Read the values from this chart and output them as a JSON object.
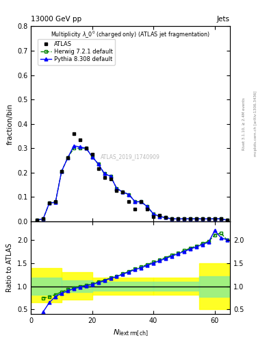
{
  "title_top": "13000 GeV pp",
  "title_right": "Jets",
  "main_title": "Multiplicity $\\lambda$_0$^0$ (charged only) (ATLAS jet fragmentation)",
  "right_label": "Rivet 3.1.10, ≥ 2.4M events",
  "arxiv_label": "mcplots.cern.ch [arXiv:1306.3436]",
  "watermark": "ATLAS_2019_I1740909",
  "ylabel_main": "fraction/bin",
  "ylabel_ratio": "Ratio to ATLAS",
  "ylim_main": [
    0.0,
    0.8
  ],
  "ylim_ratio": [
    0.4,
    2.4
  ],
  "xlim": [
    0,
    65
  ],
  "atlas_x": [
    2,
    4,
    6,
    8,
    10,
    12,
    14,
    16,
    18,
    20,
    22,
    24,
    26,
    28,
    30,
    32,
    34,
    36,
    38,
    40,
    42,
    44,
    46,
    48,
    50,
    52,
    54,
    56,
    58,
    60,
    62,
    64
  ],
  "atlas_y": [
    0.005,
    0.012,
    0.075,
    0.08,
    0.205,
    0.26,
    0.36,
    0.335,
    0.3,
    0.275,
    0.215,
    0.18,
    0.175,
    0.125,
    0.12,
    0.08,
    0.05,
    0.08,
    0.05,
    0.02,
    0.025,
    0.015,
    0.01,
    0.01,
    0.01,
    0.01,
    0.01,
    0.01,
    0.01,
    0.01,
    0.01,
    0.005
  ],
  "herwig_x": [
    2,
    4,
    6,
    8,
    10,
    12,
    14,
    16,
    18,
    20,
    22,
    24,
    26,
    28,
    30,
    32,
    34,
    36,
    38,
    40,
    42,
    44,
    46,
    48,
    50,
    52,
    54,
    56,
    58,
    60,
    62,
    64
  ],
  "herwig_y": [
    0.005,
    0.01,
    0.075,
    0.078,
    0.205,
    0.26,
    0.3,
    0.3,
    0.3,
    0.265,
    0.235,
    0.195,
    0.185,
    0.135,
    0.12,
    0.11,
    0.08,
    0.08,
    0.06,
    0.03,
    0.02,
    0.015,
    0.01,
    0.01,
    0.01,
    0.01,
    0.01,
    0.01,
    0.01,
    0.01,
    0.01,
    0.005
  ],
  "pythia_x": [
    2,
    4,
    6,
    8,
    10,
    12,
    14,
    16,
    18,
    20,
    22,
    24,
    26,
    28,
    30,
    32,
    34,
    36,
    38,
    40,
    42,
    44,
    46,
    48,
    50,
    52,
    54,
    56,
    58,
    60,
    62,
    64
  ],
  "pythia_y": [
    0.005,
    0.01,
    0.075,
    0.078,
    0.205,
    0.26,
    0.31,
    0.305,
    0.3,
    0.265,
    0.235,
    0.195,
    0.185,
    0.135,
    0.12,
    0.11,
    0.08,
    0.08,
    0.06,
    0.03,
    0.02,
    0.015,
    0.01,
    0.01,
    0.01,
    0.01,
    0.01,
    0.01,
    0.01,
    0.01,
    0.01,
    0.005
  ],
  "ratio_herwig_x": [
    4,
    6,
    8,
    10,
    12,
    14,
    16,
    18,
    20,
    22,
    24,
    26,
    28,
    30,
    32,
    34,
    36,
    38,
    40,
    42,
    44,
    46,
    48,
    50,
    52,
    54,
    56,
    58,
    60,
    62,
    64
  ],
  "ratio_herwig_y": [
    0.75,
    0.77,
    0.82,
    0.88,
    0.93,
    0.97,
    1.0,
    1.02,
    1.05,
    1.1,
    1.13,
    1.18,
    1.22,
    1.27,
    1.32,
    1.38,
    1.42,
    1.47,
    1.52,
    1.57,
    1.62,
    1.67,
    1.72,
    1.77,
    1.82,
    1.87,
    1.92,
    1.97,
    2.1,
    2.15,
    2.0
  ],
  "ratio_pythia_x": [
    4,
    6,
    8,
    10,
    12,
    14,
    16,
    18,
    20,
    22,
    24,
    26,
    28,
    30,
    32,
    34,
    36,
    38,
    40,
    42,
    44,
    46,
    48,
    50,
    52,
    54,
    56,
    58,
    60,
    62,
    64
  ],
  "ratio_pythia_y": [
    0.45,
    0.65,
    0.78,
    0.85,
    0.9,
    0.95,
    0.98,
    1.01,
    1.04,
    1.08,
    1.12,
    1.17,
    1.21,
    1.26,
    1.31,
    1.36,
    1.4,
    1.45,
    1.5,
    1.55,
    1.6,
    1.65,
    1.7,
    1.75,
    1.8,
    1.85,
    1.9,
    1.95,
    2.2,
    2.05,
    2.0
  ],
  "band_step_edges": [
    0,
    10,
    20,
    40,
    55,
    65
  ],
  "band_yellow_lo": [
    0.65,
    0.72,
    0.82,
    0.82,
    0.5,
    0.5
  ],
  "band_yellow_hi": [
    1.4,
    1.3,
    1.18,
    1.18,
    1.5,
    1.5
  ],
  "band_green_lo": [
    0.82,
    0.88,
    0.9,
    0.9,
    0.78,
    0.78
  ],
  "band_green_hi": [
    1.18,
    1.12,
    1.1,
    1.1,
    1.22,
    1.22
  ]
}
